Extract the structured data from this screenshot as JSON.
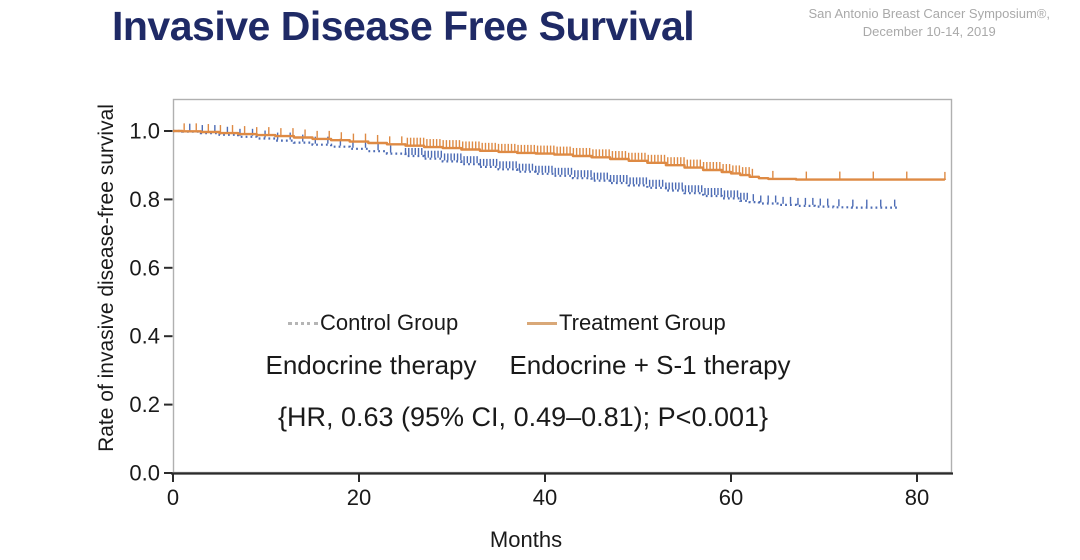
{
  "header": {
    "title": "Invasive Disease Free Survival",
    "conference_line1": "San Antonio Breast Cancer Symposium®,",
    "conference_line2": "December 10-14, 2019"
  },
  "colors": {
    "title": "#1f2a66",
    "conference_text": "#a9a9a9",
    "control_line": "#4d6cb5",
    "treatment_line": "#de8a44",
    "legend_control_marker": "#b5b5b5",
    "legend_treatment_marker": "#d9a878",
    "plot_border": "#b0b0b0",
    "axis_line": "#2b2b2b",
    "text": "#1a1a1a",
    "background": "#ffffff"
  },
  "chart_data": {
    "type": "line",
    "subtype": "kaplan-meier-survival",
    "title": "",
    "xlabel": "Months",
    "ylabel": "Rate of invasive disease-free survival",
    "xlim": [
      0,
      84.6
    ],
    "ylim": [
      0,
      1.09
    ],
    "x_ticks": [
      0,
      20,
      40,
      60,
      80
    ],
    "y_ticks": [
      {
        "value": 0.0,
        "label": "0.0"
      },
      {
        "value": 0.2,
        "label": "0.2"
      },
      {
        "value": 0.4,
        "label": "0.4"
      },
      {
        "value": 0.6,
        "label": "0.6"
      },
      {
        "value": 0.8,
        "label": "0.8"
      },
      {
        "value": 1.0,
        "label": "1.0"
      }
    ],
    "grid": false,
    "legend_position": "center",
    "annotation": "{HR, 0.63 (95% CI, 0.49–0.81); P<0.001}",
    "series": [
      {
        "name": "Control Group",
        "description": "Endocrine therapy",
        "style": "dotted",
        "color": "#4d6cb5",
        "legend_marker_color": "#b5b5b5",
        "points": [
          [
            0,
            1.0
          ],
          [
            1,
            0.998
          ],
          [
            3,
            0.994
          ],
          [
            5,
            0.989
          ],
          [
            7,
            0.983
          ],
          [
            9,
            0.978
          ],
          [
            11,
            0.972
          ],
          [
            13,
            0.966
          ],
          [
            15,
            0.96
          ],
          [
            17,
            0.954
          ],
          [
            19,
            0.948
          ],
          [
            21,
            0.941
          ],
          [
            23,
            0.934
          ],
          [
            25,
            0.927
          ],
          [
            27,
            0.919
          ],
          [
            29,
            0.911
          ],
          [
            31,
            0.903
          ],
          [
            33,
            0.895
          ],
          [
            35,
            0.888
          ],
          [
            37,
            0.881
          ],
          [
            39,
            0.875
          ],
          [
            41,
            0.869
          ],
          [
            43,
            0.862
          ],
          [
            45,
            0.855
          ],
          [
            47,
            0.848
          ],
          [
            49,
            0.841
          ],
          [
            51,
            0.834
          ],
          [
            53,
            0.826
          ],
          [
            55,
            0.818
          ],
          [
            57,
            0.81
          ],
          [
            59,
            0.803
          ],
          [
            61,
            0.796
          ],
          [
            62,
            0.792
          ],
          [
            63,
            0.788
          ],
          [
            65,
            0.784
          ],
          [
            67,
            0.781
          ],
          [
            69,
            0.779
          ],
          [
            71,
            0.777
          ],
          [
            73,
            0.776
          ],
          [
            78,
            0.775
          ]
        ],
        "censor_groups": [
          [
            1.8,
            24.6,
            1.35
          ],
          [
            25.0,
            61.8,
            0.35
          ],
          [
            62.4,
            70.4,
            0.8
          ],
          [
            71.6,
            77.6,
            1.5
          ]
        ]
      },
      {
        "name": "Treatment Group",
        "description": "Endocrine + S-1 therapy",
        "style": "solid",
        "color": "#de8a44",
        "legend_marker_color": "#d9a878",
        "points": [
          [
            0,
            1.0
          ],
          [
            1,
            0.999
          ],
          [
            3,
            0.997
          ],
          [
            5,
            0.994
          ],
          [
            7,
            0.991
          ],
          [
            9,
            0.988
          ],
          [
            11,
            0.985
          ],
          [
            13,
            0.981
          ],
          [
            15,
            0.977
          ],
          [
            17,
            0.973
          ],
          [
            19,
            0.969
          ],
          [
            21,
            0.965
          ],
          [
            23,
            0.961
          ],
          [
            25,
            0.957
          ],
          [
            27,
            0.953
          ],
          [
            29,
            0.95
          ],
          [
            31,
            0.946
          ],
          [
            33,
            0.942
          ],
          [
            35,
            0.939
          ],
          [
            37,
            0.936
          ],
          [
            39,
            0.934
          ],
          [
            41,
            0.931
          ],
          [
            43,
            0.927
          ],
          [
            45,
            0.923
          ],
          [
            47,
            0.918
          ],
          [
            49,
            0.913
          ],
          [
            51,
            0.907
          ],
          [
            53,
            0.9
          ],
          [
            55,
            0.893
          ],
          [
            57,
            0.886
          ],
          [
            59,
            0.88
          ],
          [
            60,
            0.876
          ],
          [
            61,
            0.871
          ],
          [
            62,
            0.866
          ],
          [
            63,
            0.862
          ],
          [
            64,
            0.86
          ],
          [
            67,
            0.858
          ],
          [
            83,
            0.857
          ]
        ],
        "censor_groups": [
          [
            1.2,
            24.8,
            1.3
          ],
          [
            25.2,
            62.4,
            0.35
          ],
          [
            64.5,
            79,
            3.6
          ],
          [
            83,
            83,
            1
          ]
        ]
      }
    ]
  }
}
